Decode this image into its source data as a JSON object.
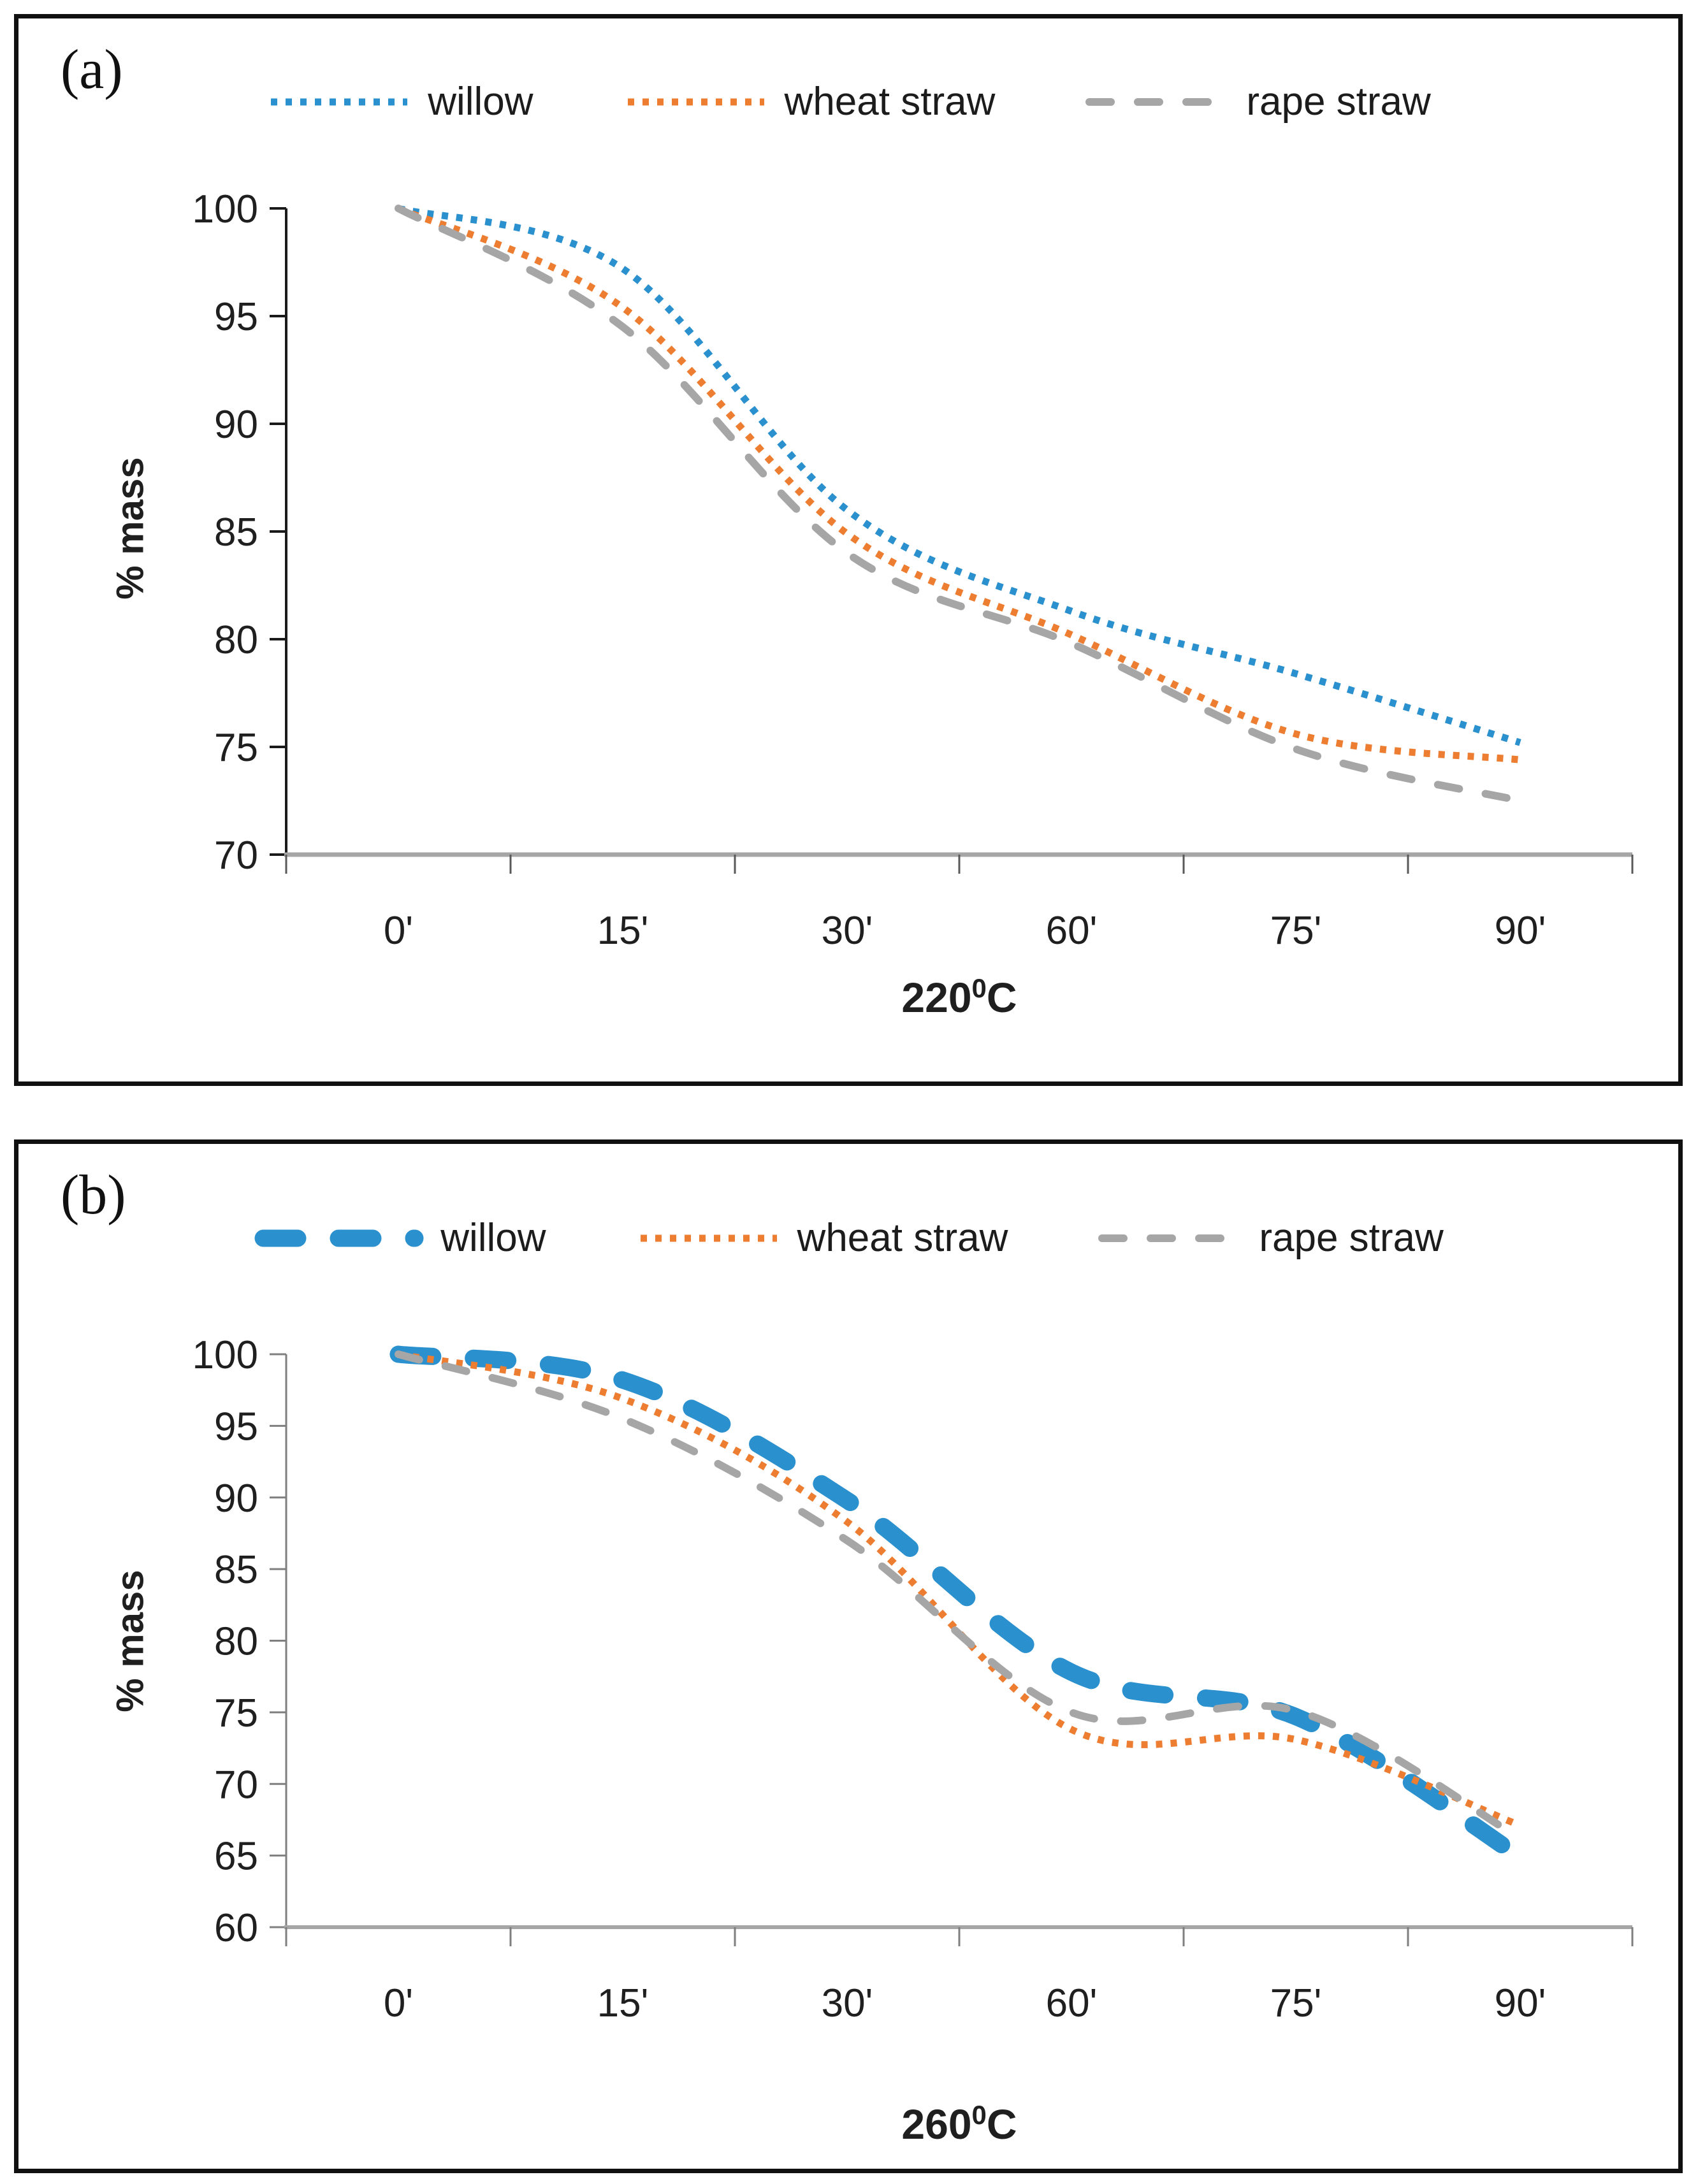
{
  "panels": [
    {
      "tag": "(a)"
    },
    {
      "tag": "(b)"
    }
  ],
  "chart_data": [
    {
      "type": "line",
      "panel": "(a)",
      "title": "220⁰C",
      "title_base": "220",
      "title_sup": "0",
      "title_unit": "C",
      "ylabel": "% mass",
      "categories": [
        "0'",
        "15'",
        "30'",
        "60'",
        "75'",
        "90'"
      ],
      "ylim": [
        70,
        100
      ],
      "ytick_step": 5,
      "yticks": [
        100,
        95,
        90,
        85,
        80,
        75,
        70
      ],
      "grid": false,
      "legend_position": "top",
      "axis_colors": {
        "y_axis": "#1a1a1a",
        "x_axis": "#a6a6a6"
      },
      "series": [
        {
          "name": "willow",
          "color": "#2b90ce",
          "linestyle": "dotted",
          "values": [
            100,
            97.2,
            86.0,
            81.3,
            78.4,
            75.2
          ]
        },
        {
          "name": "wheat straw",
          "color": "#ed7d31",
          "linestyle": "dotted",
          "values": [
            100,
            95.4,
            84.9,
            80.2,
            75.6,
            74.4
          ]
        },
        {
          "name": "rape straw",
          "color": "#a6a6a6",
          "linestyle": "dashed",
          "values": [
            100,
            94.5,
            84.0,
            79.8,
            74.9,
            72.5
          ]
        }
      ]
    },
    {
      "type": "line",
      "panel": "(b)",
      "title": "260⁰C",
      "title_base": "260",
      "title_sup": "0",
      "title_unit": "C",
      "ylabel": "% mass",
      "categories": [
        "0'",
        "15'",
        "30'",
        "60'",
        "75'",
        "90'"
      ],
      "ylim": [
        60,
        100
      ],
      "ytick_step": 5,
      "yticks": [
        100,
        95,
        90,
        85,
        80,
        75,
        70,
        65,
        60
      ],
      "grid": false,
      "legend_position": "top",
      "axis_colors": {
        "y_axis": "#7f7f7f",
        "x_axis": "#a6a6a6"
      },
      "series": [
        {
          "name": "willow",
          "color": "#2b90ce",
          "linestyle": "thick-dashed",
          "values": [
            100,
            98.2,
            89.8,
            77.8,
            74.7,
            64.9
          ]
        },
        {
          "name": "wheat straw",
          "color": "#ed7d31",
          "linestyle": "dotted",
          "values": [
            100,
            96.9,
            88.3,
            73.8,
            73.1,
            67.1
          ]
        },
        {
          "name": "rape straw",
          "color": "#a6a6a6",
          "linestyle": "dashed",
          "values": [
            100,
            95.5,
            87.0,
            75.0,
            75.1,
            66.2
          ]
        }
      ]
    }
  ]
}
